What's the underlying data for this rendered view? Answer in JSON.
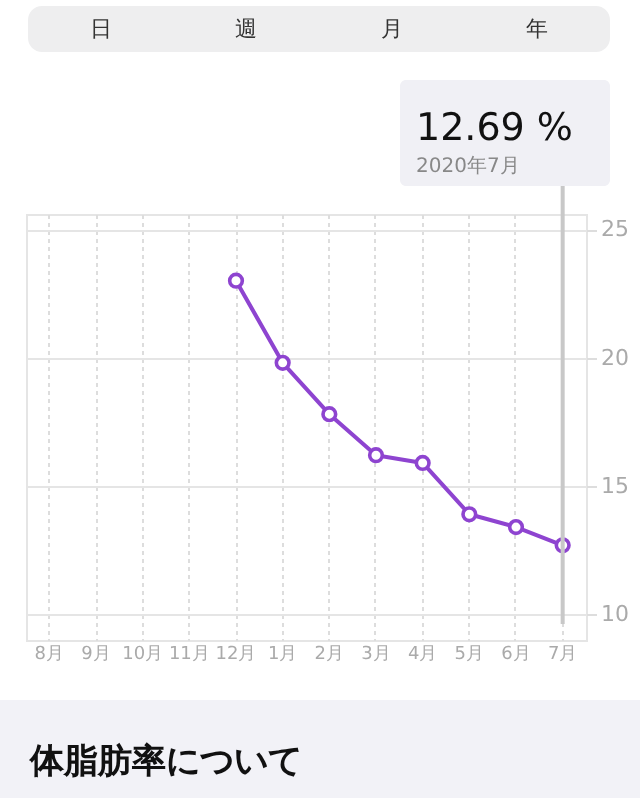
{
  "chart_data": {
    "type": "line",
    "categories": [
      "8月",
      "9月",
      "10月",
      "11月",
      "12月",
      "1月",
      "2月",
      "3月",
      "4月",
      "5月",
      "6月",
      "7月"
    ],
    "series": [
      {
        "color": "#8e44d0",
        "values": [
          null,
          null,
          null,
          null,
          23.0,
          19.8,
          17.8,
          16.2,
          15.9,
          13.9,
          13.4,
          12.69
        ]
      }
    ],
    "ylim": [
      9,
      25.6
    ],
    "yticks": [
      10,
      15,
      20,
      25
    ],
    "grid": true,
    "marker": "circle",
    "line_style": "solid",
    "ref_lines": [
      {
        "axis": "x",
        "value": "7月",
        "color": "#c8c8c8"
      }
    ],
    "annotations": [
      "日",
      "週",
      "月",
      "年",
      "12.69 %",
      "2020年7月",
      "体脂肪率について"
    ]
  }
}
